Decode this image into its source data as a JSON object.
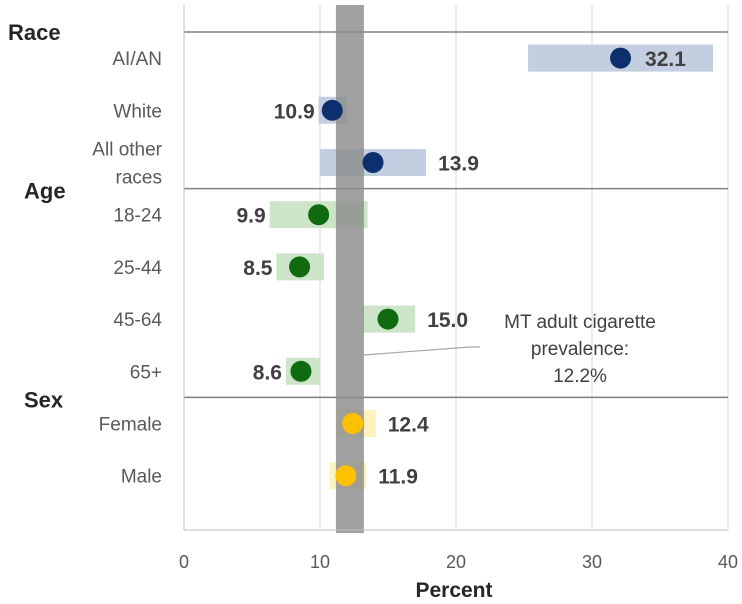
{
  "chart_data": {
    "type": "scatter",
    "xlabel": "Percent",
    "xlim": [
      0,
      40
    ],
    "xticks": [
      0,
      10,
      20,
      30,
      40
    ],
    "grid": "vertical",
    "reference": {
      "value": 12.2,
      "label_lines": [
        "MT adult cigarette",
        "prevalence:",
        "12.2%"
      ]
    },
    "groups": [
      {
        "name": "Race",
        "color": "#0d2f6e",
        "ci_color": "#b8c7da",
        "items": [
          {
            "label_lines": [
              "AI/AN"
            ],
            "value": 32.1,
            "value_label": "32.1",
            "ci": [
              25.3,
              38.9
            ]
          },
          {
            "label_lines": [
              "White"
            ],
            "value": 10.9,
            "value_label": "10.9",
            "ci": [
              9.9,
              12.0
            ]
          },
          {
            "label_lines": [
              "All other",
              "races"
            ],
            "value": 13.9,
            "value_label": "13.9",
            "ci": [
              10.0,
              17.8
            ]
          }
        ]
      },
      {
        "name": "Age",
        "color": "#106b10",
        "ci_color": "#c3e1c0",
        "items": [
          {
            "label_lines": [
              "18-24"
            ],
            "value": 9.9,
            "value_label": "9.9",
            "ci": [
              6.3,
              13.5
            ]
          },
          {
            "label_lines": [
              "25-44"
            ],
            "value": 8.5,
            "value_label": "8.5",
            "ci": [
              6.8,
              10.3
            ]
          },
          {
            "label_lines": [
              "45-64"
            ],
            "value": 15.0,
            "value_label": "15.0",
            "ci": [
              13.1,
              17.0
            ]
          },
          {
            "label_lines": [
              "65+"
            ],
            "value": 8.6,
            "value_label": "8.6",
            "ci": [
              7.5,
              10.0
            ]
          }
        ]
      },
      {
        "name": "Sex",
        "color": "#ffc000",
        "ci_color": "#fff0b3",
        "items": [
          {
            "label_lines": [
              "Female"
            ],
            "value": 12.4,
            "value_label": "12.4",
            "ci": [
              11.2,
              14.1
            ]
          },
          {
            "label_lines": [
              "Male"
            ],
            "value": 11.9,
            "value_label": "11.9",
            "ci": [
              10.7,
              13.4
            ]
          }
        ]
      }
    ]
  }
}
